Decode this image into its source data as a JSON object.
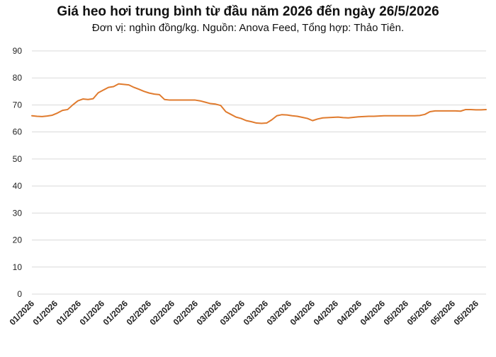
{
  "chart_data": {
    "type": "line",
    "title": "Giá heo hơi trung bình từ đầu năm 2026 đến ngày 26/5/2026",
    "subtitle": "Đơn vị: nghìn đồng/kg. Nguồn: Anova Feed, Tổng hợp: Thảo Tiên.",
    "xlabel": "",
    "ylabel": "",
    "ylim": [
      0,
      90
    ],
    "yticks": [
      "0",
      "10",
      "20",
      "30",
      "40",
      "50",
      "60",
      "70",
      "80",
      "90"
    ],
    "grid": true,
    "legend": "none",
    "line_color": "#E07B2E",
    "grid_color": "#D9D9D9",
    "x_tick_labels": [
      "01/2026",
      "01/2026",
      "01/2026",
      "01/2026",
      "01/2026",
      "02/2026",
      "02/2026",
      "02/2026",
      "03/2026",
      "03/2026",
      "03/2026",
      "03/2026",
      "04/2026",
      "04/2026",
      "04/2026",
      "04/2026",
      "05/2026",
      "05/2026",
      "05/2026",
      "05/2026"
    ],
    "series": [
      {
        "values": [
          66.0,
          65.8,
          65.7,
          65.9,
          66.2,
          67.0,
          68.0,
          68.3,
          70.0,
          71.5,
          72.2,
          72.0,
          72.3,
          74.5,
          75.5,
          76.5,
          76.8,
          77.8,
          77.6,
          77.4,
          76.5,
          75.8,
          75.0,
          74.4,
          74.0,
          73.8,
          72.0,
          71.8,
          71.8,
          71.8,
          71.8,
          71.8,
          71.8,
          71.5,
          71.0,
          70.5,
          70.3,
          69.8,
          67.5,
          66.5,
          65.5,
          65.0,
          64.2,
          63.8,
          63.3,
          63.2,
          63.3,
          64.5,
          66.0,
          66.4,
          66.3,
          66.0,
          65.8,
          65.4,
          65.0,
          64.2,
          64.8,
          65.2,
          65.3,
          65.4,
          65.5,
          65.3,
          65.2,
          65.4,
          65.6,
          65.7,
          65.8,
          65.8,
          65.9,
          66.0,
          66.0,
          66.0,
          66.0,
          66.0,
          66.0,
          66.0,
          66.1,
          66.5,
          67.5,
          67.8,
          67.8,
          67.8,
          67.8,
          67.8,
          67.7,
          68.3,
          68.3,
          68.2,
          68.2,
          68.3
        ]
      }
    ]
  }
}
